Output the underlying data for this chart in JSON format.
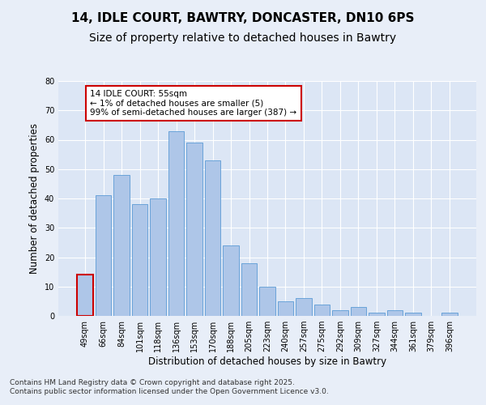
{
  "title_line1": "14, IDLE COURT, BAWTRY, DONCASTER, DN10 6PS",
  "title_line2": "Size of property relative to detached houses in Bawtry",
  "xlabel": "Distribution of detached houses by size in Bawtry",
  "ylabel": "Number of detached properties",
  "categories": [
    "49sqm",
    "66sqm",
    "84sqm",
    "101sqm",
    "118sqm",
    "136sqm",
    "153sqm",
    "170sqm",
    "188sqm",
    "205sqm",
    "223sqm",
    "240sqm",
    "257sqm",
    "275sqm",
    "292sqm",
    "309sqm",
    "327sqm",
    "344sqm",
    "361sqm",
    "379sqm",
    "396sqm"
  ],
  "values": [
    14,
    41,
    48,
    38,
    40,
    63,
    59,
    53,
    24,
    18,
    10,
    5,
    6,
    4,
    2,
    3,
    1,
    2,
    1,
    0,
    1
  ],
  "bar_color": "#aec6e8",
  "bar_edge_color": "#5b9bd5",
  "highlight_bar_index": 0,
  "highlight_bar_edge_color": "#cc0000",
  "annotation_text": "14 IDLE COURT: 55sqm\n← 1% of detached houses are smaller (5)\n99% of semi-detached houses are larger (387) →",
  "annotation_box_facecolor": "#ffffff",
  "annotation_box_edgecolor": "#cc0000",
  "ylim": [
    0,
    80
  ],
  "yticks": [
    0,
    10,
    20,
    30,
    40,
    50,
    60,
    70,
    80
  ],
  "fig_background_color": "#e8eef8",
  "ax_background_color": "#dce6f5",
  "grid_color": "#ffffff",
  "footer_line1": "Contains HM Land Registry data © Crown copyright and database right 2025.",
  "footer_line2": "Contains public sector information licensed under the Open Government Licence v3.0.",
  "title_fontsize": 11,
  "subtitle_fontsize": 10,
  "axis_label_fontsize": 8.5,
  "tick_fontsize": 7,
  "annotation_fontsize": 7.5,
  "footer_fontsize": 6.5
}
